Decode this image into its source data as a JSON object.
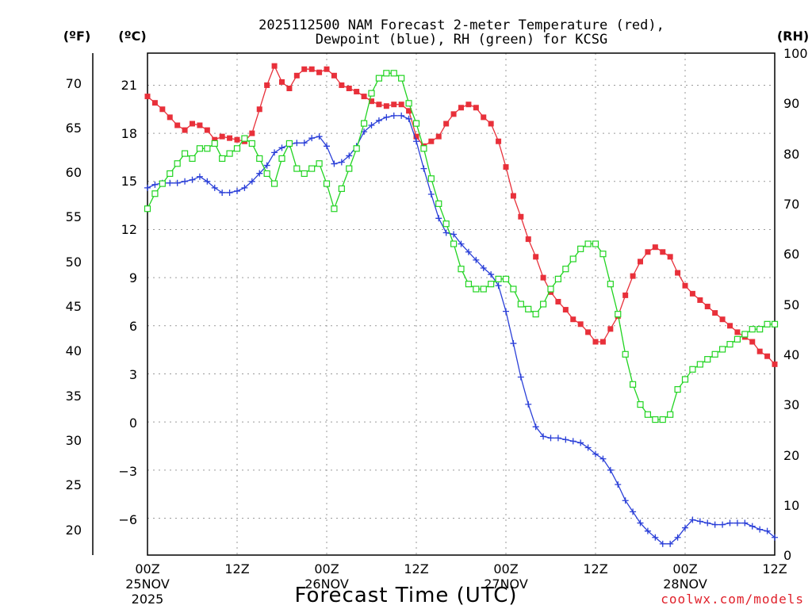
{
  "chart_data": {
    "type": "line",
    "title_line1": "2025112500 NAM Forecast 2-meter Temperature (red),",
    "title_line2": "Dewpoint (blue), RH (green) for KCSG",
    "xlabel": "Forecast Time (UTC)",
    "credit": "coolwx.com/models",
    "credit_color": "#e0202a",
    "axes": {
      "fahrenheit": {
        "unit_label": "(ºF)",
        "ticks": [
          "70",
          "65",
          "60",
          "55",
          "50",
          "45",
          "40",
          "35",
          "30",
          "25",
          "20"
        ]
      },
      "celsius": {
        "unit_label": "(ºC)",
        "ticks": [
          "21",
          "18",
          "15",
          "12",
          "9",
          "6",
          "3",
          "0",
          "−3",
          "−6"
        ],
        "ylim": [
          -8.3,
          23
        ]
      },
      "rh": {
        "unit_label": "(RH)",
        "ticks": [
          "100",
          "90",
          "80",
          "70",
          "60",
          "50",
          "40",
          "30",
          "20",
          "10",
          "0"
        ],
        "ylim": [
          0,
          100
        ]
      }
    },
    "x_ticks": [
      {
        "hour": 0,
        "lines": [
          "00Z",
          "25NOV",
          "2025"
        ]
      },
      {
        "hour": 12,
        "lines": [
          "12Z"
        ]
      },
      {
        "hour": 24,
        "lines": [
          "00Z",
          "26NOV"
        ]
      },
      {
        "hour": 36,
        "lines": [
          "12Z"
        ]
      },
      {
        "hour": 48,
        "lines": [
          "00Z",
          "27NOV"
        ]
      },
      {
        "hour": 60,
        "lines": [
          "12Z"
        ]
      },
      {
        "hour": 72,
        "lines": [
          "00Z",
          "28NOV"
        ]
      },
      {
        "hour": 84,
        "lines": [
          "12Z"
        ]
      }
    ],
    "xlim": [
      0,
      84
    ],
    "grid": true,
    "x_hours": [
      0,
      1,
      2,
      3,
      4,
      5,
      6,
      7,
      8,
      9,
      10,
      11,
      12,
      13,
      14,
      15,
      16,
      17,
      18,
      19,
      20,
      21,
      22,
      23,
      24,
      25,
      26,
      27,
      28,
      29,
      30,
      31,
      32,
      33,
      34,
      35,
      36,
      37,
      38,
      39,
      40,
      41,
      42,
      43,
      44,
      45,
      46,
      47,
      48,
      49,
      50,
      51,
      52,
      53,
      54,
      55,
      56,
      57,
      58,
      59,
      60,
      61,
      62,
      63,
      64,
      65,
      66,
      67,
      68,
      69,
      70,
      71,
      72,
      73,
      74,
      75,
      76,
      77,
      78,
      79,
      80,
      81,
      82,
      83,
      84
    ],
    "series": [
      {
        "name": "Temperature",
        "unit": "C",
        "color": "#e8303a",
        "marker": "filled-square",
        "values": [
          20.3,
          19.9,
          19.5,
          19.0,
          18.5,
          18.2,
          18.6,
          18.5,
          18.2,
          17.6,
          17.8,
          17.7,
          17.6,
          17.5,
          18.0,
          19.5,
          21.0,
          22.2,
          21.2,
          20.8,
          21.6,
          22.0,
          22.0,
          21.8,
          22.0,
          21.6,
          21.0,
          20.8,
          20.6,
          20.3,
          20.0,
          19.8,
          19.7,
          19.8,
          19.8,
          19.4,
          17.8,
          17.2,
          17.5,
          17.8,
          18.6,
          19.2,
          19.6,
          19.8,
          19.6,
          19.0,
          18.6,
          17.5,
          15.9,
          14.1,
          12.8,
          11.4,
          10.3,
          9.0,
          8.1,
          7.5,
          7.0,
          6.4,
          6.1,
          5.6,
          5.0,
          5.0,
          5.8,
          6.6,
          7.9,
          9.1,
          10.0,
          10.6,
          10.9,
          10.6,
          10.3,
          9.3,
          8.5,
          8.0,
          7.6,
          7.2,
          6.8,
          6.4,
          6.0,
          5.6,
          5.3,
          5.0,
          4.4,
          4.1,
          3.6
        ]
      },
      {
        "name": "Dewpoint",
        "unit": "C",
        "color": "#2a3fd8",
        "marker": "plus",
        "values": [
          14.6,
          14.8,
          14.9,
          14.9,
          14.9,
          15.0,
          15.1,
          15.3,
          15.0,
          14.6,
          14.3,
          14.3,
          14.4,
          14.6,
          15.0,
          15.5,
          16.0,
          16.8,
          17.1,
          17.3,
          17.4,
          17.4,
          17.7,
          17.8,
          17.2,
          16.1,
          16.2,
          16.6,
          17.2,
          18.1,
          18.5,
          18.8,
          19.0,
          19.1,
          19.1,
          18.9,
          17.5,
          15.8,
          14.2,
          12.7,
          11.8,
          11.7,
          11.1,
          10.6,
          10.1,
          9.6,
          9.2,
          8.5,
          6.9,
          4.9,
          2.8,
          1.1,
          -0.3,
          -0.9,
          -1.0,
          -1.0,
          -1.1,
          -1.2,
          -1.3,
          -1.6,
          -2.0,
          -2.3,
          -3.0,
          -3.9,
          -4.9,
          -5.6,
          -6.3,
          -6.8,
          -7.2,
          -7.6,
          -7.6,
          -7.2,
          -6.6,
          -6.1,
          -6.2,
          -6.3,
          -6.4,
          -6.4,
          -6.3,
          -6.3,
          -6.3,
          -6.5,
          -6.7,
          -6.8,
          -7.2
        ]
      },
      {
        "name": "RH",
        "unit": "%",
        "color": "#22d422",
        "marker": "open-square",
        "values": [
          69,
          72,
          74,
          76,
          78,
          80,
          79,
          81,
          81,
          82,
          79,
          80,
          81,
          83,
          82,
          79,
          76,
          74,
          79,
          82,
          77,
          76,
          77,
          78,
          74,
          69,
          73,
          77,
          81,
          86,
          92,
          95,
          96,
          96,
          95,
          90,
          86,
          81,
          75,
          70,
          66,
          62,
          57,
          54,
          53,
          53,
          54,
          55,
          55,
          53,
          50,
          49,
          48,
          50,
          53,
          55,
          57,
          59,
          61,
          62,
          62,
          60,
          54,
          48,
          40,
          34,
          30,
          28,
          27,
          27,
          28,
          33,
          35,
          37,
          38,
          39,
          40,
          41,
          42,
          43,
          44,
          45,
          45,
          46,
          46
        ]
      }
    ]
  }
}
